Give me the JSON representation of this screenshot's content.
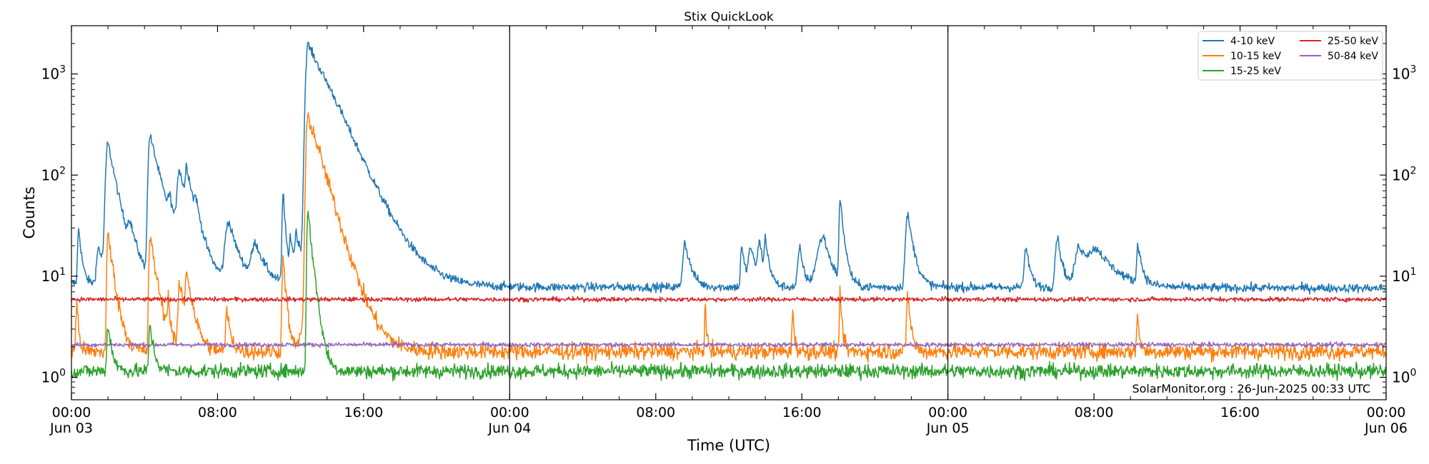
{
  "chart_data": {
    "type": "line",
    "title": "Stix QuickLook",
    "xlabel": "Time (UTC)",
    "ylabel": "Counts",
    "yscale": "log",
    "ylim": [
      0.6,
      3000
    ],
    "xlim_hours": [
      0,
      72
    ],
    "grid": false,
    "legend_position": "top-right",
    "annotation": "SolarMonitor.org : 26-Jun-2025 00:33 UTC",
    "x_ticks": [
      {
        "hour": 0,
        "time": "00:00",
        "date": "Jun 03"
      },
      {
        "hour": 8,
        "time": "08:00",
        "date": ""
      },
      {
        "hour": 16,
        "time": "16:00",
        "date": ""
      },
      {
        "hour": 24,
        "time": "00:00",
        "date": "Jun 04"
      },
      {
        "hour": 32,
        "time": "08:00",
        "date": ""
      },
      {
        "hour": 40,
        "time": "16:00",
        "date": ""
      },
      {
        "hour": 48,
        "time": "00:00",
        "date": "Jun 05"
      },
      {
        "hour": 56,
        "time": "08:00",
        "date": ""
      },
      {
        "hour": 64,
        "time": "16:00",
        "date": ""
      },
      {
        "hour": 72,
        "time": "00:00",
        "date": "Jun 06"
      }
    ],
    "y_ticks": [
      {
        "value": 1,
        "base": "10",
        "exp": "0"
      },
      {
        "value": 10,
        "base": "10",
        "exp": "1"
      },
      {
        "value": 100,
        "base": "10",
        "exp": "2"
      },
      {
        "value": 1000,
        "base": "10",
        "exp": "3"
      }
    ],
    "day_boundaries_hours": [
      24,
      48
    ],
    "series": [
      {
        "name": "4-10 keV",
        "color": "#1f77b4",
        "baseline": [
          [
            0,
            8.5
          ],
          [
            6,
            8.5
          ],
          [
            12,
            8
          ],
          [
            24,
            7.8
          ],
          [
            48,
            7.8
          ],
          [
            72,
            7.6
          ]
        ],
        "noise": 0.05,
        "events": [
          {
            "t": 0.4,
            "peak": 22,
            "rise": 0.05,
            "decay": 0.15
          },
          {
            "t": 1.5,
            "peak": 11,
            "rise": 0.1,
            "decay": 0.3
          },
          {
            "t": 2.0,
            "peak": 200,
            "rise": 0.1,
            "decay": 0.45
          },
          {
            "t": 3.2,
            "peak": 14,
            "rise": 0.1,
            "decay": 0.4
          },
          {
            "t": 4.3,
            "peak": 240,
            "rise": 0.08,
            "decay": 0.55
          },
          {
            "t": 5.4,
            "peak": 22,
            "rise": 0.1,
            "decay": 0.25
          },
          {
            "t": 5.9,
            "peak": 90,
            "rise": 0.1,
            "decay": 0.6
          },
          {
            "t": 6.3,
            "peak": 65,
            "rise": 0.05,
            "decay": 0.35
          },
          {
            "t": 6.8,
            "peak": 18,
            "rise": 0.05,
            "decay": 0.2
          },
          {
            "t": 8.6,
            "peak": 26,
            "rise": 0.15,
            "decay": 0.5
          },
          {
            "t": 10.1,
            "peak": 12,
            "rise": 0.2,
            "decay": 0.5
          },
          {
            "t": 11.6,
            "peak": 60,
            "rise": 0.05,
            "decay": 0.12
          },
          {
            "t": 12.0,
            "peak": 14,
            "rise": 0.05,
            "decay": 0.2
          },
          {
            "t": 12.3,
            "peak": 14,
            "rise": 0.05,
            "decay": 0.2
          },
          {
            "t": 12.95,
            "peak": 1950,
            "rise": 0.1,
            "decay": 1.1
          },
          {
            "t": 14.3,
            "peak": 65,
            "rise": 0.8,
            "decay": 0.9
          },
          {
            "t": 33.6,
            "peak": 14,
            "rise": 0.1,
            "decay": 0.3
          },
          {
            "t": 36.7,
            "peak": 12,
            "rise": 0.05,
            "decay": 0.2
          },
          {
            "t": 37.2,
            "peak": 11,
            "rise": 0.1,
            "decay": 0.3
          },
          {
            "t": 37.7,
            "peak": 12,
            "rise": 0.1,
            "decay": 0.2
          },
          {
            "t": 38.0,
            "peak": 13,
            "rise": 0.05,
            "decay": 0.2
          },
          {
            "t": 39.9,
            "peak": 11,
            "rise": 0.1,
            "decay": 0.2
          },
          {
            "t": 41.2,
            "peak": 17,
            "rise": 0.3,
            "decay": 0.4
          },
          {
            "t": 42.1,
            "peak": 48,
            "rise": 0.05,
            "decay": 0.2
          },
          {
            "t": 45.8,
            "peak": 33,
            "rise": 0.1,
            "decay": 0.3
          },
          {
            "t": 52.3,
            "peak": 11,
            "rise": 0.1,
            "decay": 0.2
          },
          {
            "t": 54.0,
            "peak": 17,
            "rise": 0.1,
            "decay": 0.25
          },
          {
            "t": 55.2,
            "peak": 11,
            "rise": 0.2,
            "decay": 0.4
          },
          {
            "t": 56.2,
            "peak": 10,
            "rise": 0.5,
            "decay": 1.0
          },
          {
            "t": 58.4,
            "peak": 13,
            "rise": 0.05,
            "decay": 0.2
          }
        ]
      },
      {
        "name": "10-15 keV",
        "color": "#ff7f0e",
        "baseline": [
          [
            0,
            1.8
          ],
          [
            72,
            1.8
          ]
        ],
        "noise": 0.09,
        "events": [
          {
            "t": 0.3,
            "peak": 3.5,
            "rise": 0.05,
            "decay": 0.1
          },
          {
            "t": 2.0,
            "peak": 25,
            "rise": 0.05,
            "decay": 0.3
          },
          {
            "t": 4.3,
            "peak": 23,
            "rise": 0.05,
            "decay": 0.35
          },
          {
            "t": 5.3,
            "peak": 3.2,
            "rise": 0.05,
            "decay": 0.1
          },
          {
            "t": 5.9,
            "peak": 6.5,
            "rise": 0.05,
            "decay": 0.4
          },
          {
            "t": 6.3,
            "peak": 7.5,
            "rise": 0.05,
            "decay": 0.3
          },
          {
            "t": 8.5,
            "peak": 2.8,
            "rise": 0.05,
            "decay": 0.2
          },
          {
            "t": 11.6,
            "peak": 14,
            "rise": 0.05,
            "decay": 0.15
          },
          {
            "t": 12.95,
            "peak": 380,
            "rise": 0.08,
            "decay": 0.7
          },
          {
            "t": 13.5,
            "peak": 15,
            "rise": 0.4,
            "decay": 0.5
          },
          {
            "t": 34.7,
            "peak": 3.4,
            "rise": 0.03,
            "decay": 0.08
          },
          {
            "t": 39.5,
            "peak": 3.2,
            "rise": 0.03,
            "decay": 0.08
          },
          {
            "t": 42.1,
            "peak": 5.0,
            "rise": 0.03,
            "decay": 0.1
          },
          {
            "t": 45.8,
            "peak": 5.0,
            "rise": 0.05,
            "decay": 0.15
          },
          {
            "t": 58.4,
            "peak": 2.3,
            "rise": 0.05,
            "decay": 0.1
          }
        ]
      },
      {
        "name": "15-25 keV",
        "color": "#2ca02c",
        "baseline": [
          [
            0,
            1.15
          ],
          [
            72,
            1.15
          ]
        ],
        "noise": 0.08,
        "events": [
          {
            "t": 2.0,
            "peak": 2.2,
            "rise": 0.05,
            "decay": 0.2
          },
          {
            "t": 4.3,
            "peak": 2.2,
            "rise": 0.05,
            "decay": 0.2
          },
          {
            "t": 12.95,
            "peak": 42,
            "rise": 0.05,
            "decay": 0.25
          }
        ]
      },
      {
        "name": "25-50 keV",
        "color": "#d62728",
        "baseline": [
          [
            0,
            5.9
          ],
          [
            72,
            5.9
          ]
        ],
        "noise": 0.025,
        "events": []
      },
      {
        "name": "50-84 keV",
        "color": "#9467bd",
        "baseline": [
          [
            0,
            2.1
          ],
          [
            72,
            2.1
          ]
        ],
        "noise": 0.025,
        "events": []
      }
    ]
  }
}
